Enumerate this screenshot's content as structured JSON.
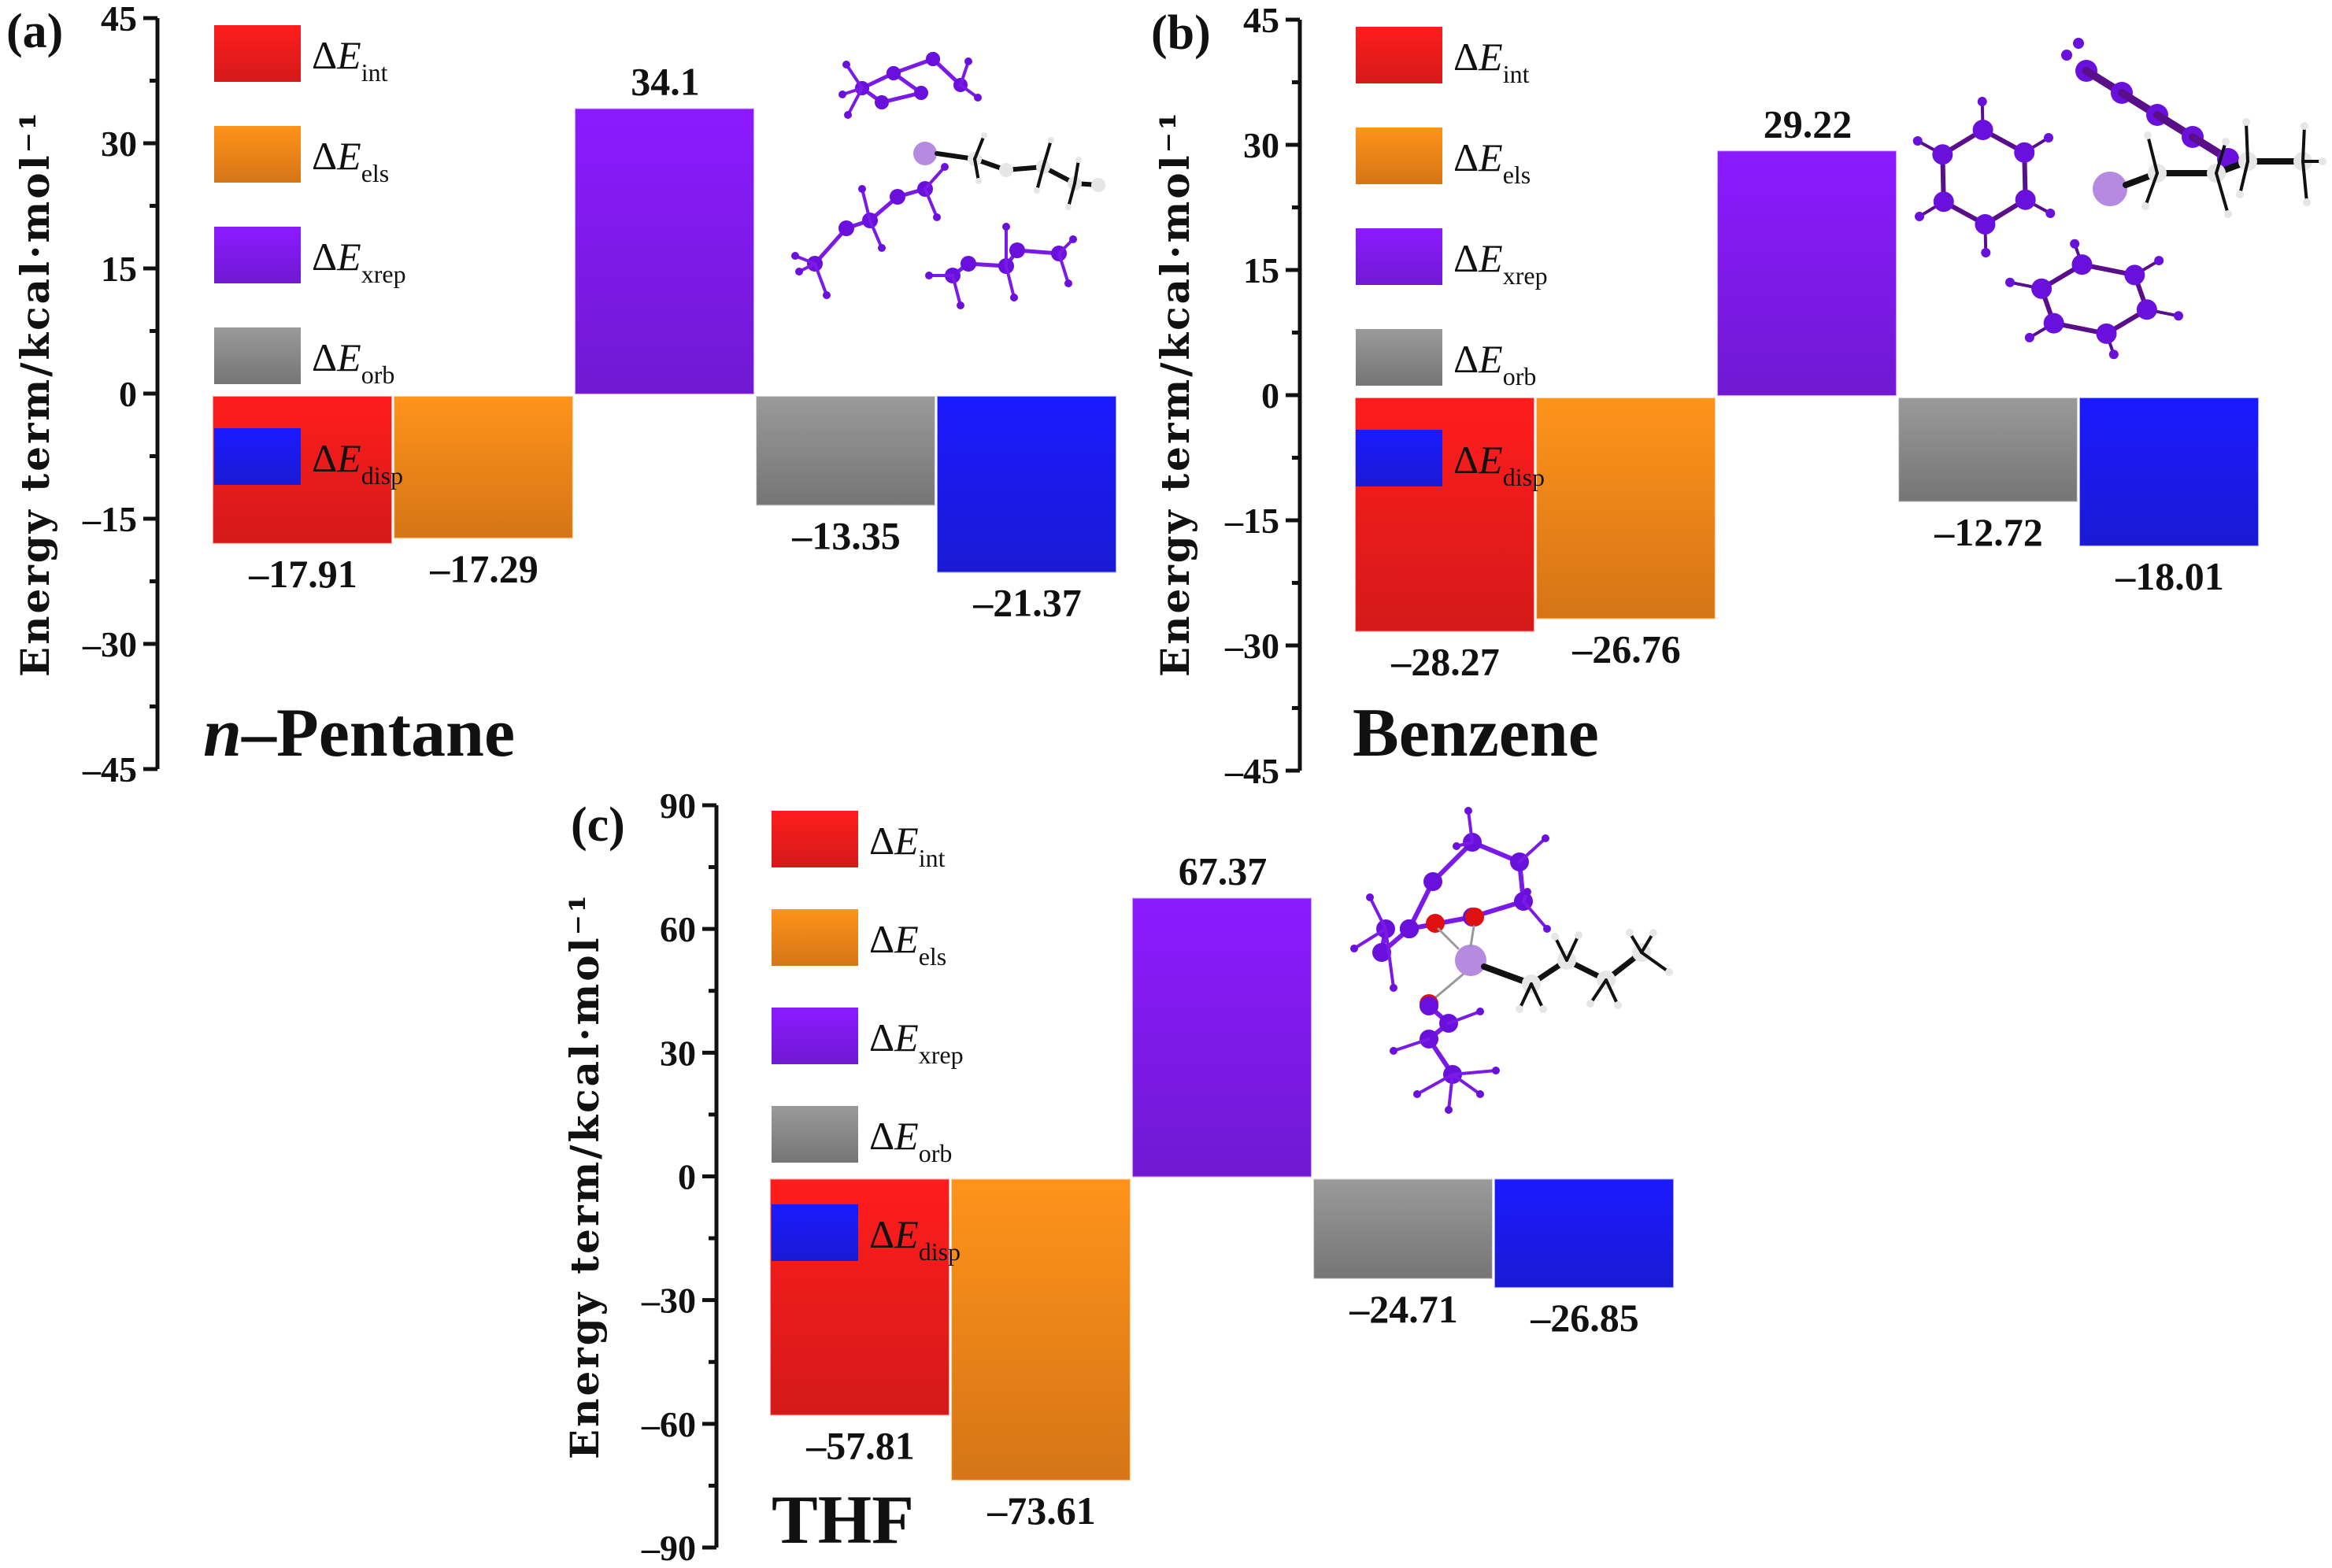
{
  "figure": {
    "legend_symbol": "ΔE",
    "legend_items": [
      {
        "key": "int",
        "sub": "int",
        "color_top": "#ff1c1c",
        "color_bottom": "#d41a1a"
      },
      {
        "key": "els",
        "sub": "els",
        "color_top": "#ff931a",
        "color_bottom": "#d57517"
      },
      {
        "key": "xrep",
        "sub": "xrep",
        "color_top": "#8c1aff",
        "color_bottom": "#7019d2"
      },
      {
        "key": "orb",
        "sub": "orb",
        "color_top": "#9a9a9a",
        "color_bottom": "#757575"
      },
      {
        "key": "disp",
        "sub": "disp",
        "color_top": "#1a1aff",
        "color_bottom": "#1a1ad4"
      }
    ]
  },
  "chart_data": [
    {
      "type": "bar",
      "panel": "(a)",
      "title": "n-Pentane",
      "title_italic_prefix": "n",
      "title_rest": "–Pentane",
      "ylabel": "Energy term/kcal·mol⁻¹",
      "ylim": [
        -45,
        45
      ],
      "yticks": [
        45,
        30,
        15,
        0,
        -15,
        -30,
        -45
      ],
      "ytick_labels": [
        "45",
        "30",
        "15",
        "0",
        "–15",
        "–30",
        "–45"
      ],
      "categories": [
        "ΔE_int",
        "ΔE_els",
        "ΔE_xrep",
        "ΔE_orb",
        "ΔE_disp"
      ],
      "values": [
        -17.91,
        -17.29,
        34.1,
        -13.35,
        -21.37
      ],
      "value_labels": [
        "–17.91",
        "–17.29",
        "34.1",
        "–13.35",
        "–21.37"
      ],
      "legend": "top-left",
      "inset": "molecular structure (n-pentane solvation)"
    },
    {
      "type": "bar",
      "panel": "(b)",
      "title": "Benzene",
      "title_italic_prefix": "",
      "title_rest": "Benzene",
      "ylabel": "Energy term/kcal·mol⁻¹",
      "ylim": [
        -45,
        45
      ],
      "yticks": [
        45,
        30,
        15,
        0,
        -15,
        -30,
        -45
      ],
      "ytick_labels": [
        "45",
        "30",
        "15",
        "0",
        "–15",
        "–30",
        "–45"
      ],
      "categories": [
        "ΔE_int",
        "ΔE_els",
        "ΔE_xrep",
        "ΔE_orb",
        "ΔE_disp"
      ],
      "values": [
        -28.27,
        -26.76,
        29.22,
        -12.72,
        -18.01
      ],
      "value_labels": [
        "–28.27",
        "–26.76",
        "29.22",
        "–12.72",
        "–18.01"
      ],
      "legend": "top-left",
      "inset": "molecular structure (benzene solvation)"
    },
    {
      "type": "bar",
      "panel": "(c)",
      "title": "THF",
      "title_italic_prefix": "",
      "title_rest": "THF",
      "ylabel": "Energy term/kcal·mol⁻¹",
      "ylim": [
        -90,
        90
      ],
      "yticks": [
        90,
        60,
        30,
        0,
        -30,
        -60,
        -90
      ],
      "ytick_labels": [
        "90",
        "60",
        "30",
        "0",
        "–30",
        "–60",
        "–90"
      ],
      "categories": [
        "ΔE_int",
        "ΔE_els",
        "ΔE_xrep",
        "ΔE_orb",
        "ΔE_disp"
      ],
      "values": [
        -57.81,
        -73.61,
        67.37,
        -24.71,
        -26.85
      ],
      "value_labels": [
        "–57.81",
        "–73.61",
        "67.37",
        "–24.71",
        "–26.85"
      ],
      "legend": "top-left",
      "inset": "molecular structure (THF solvation)"
    }
  ]
}
